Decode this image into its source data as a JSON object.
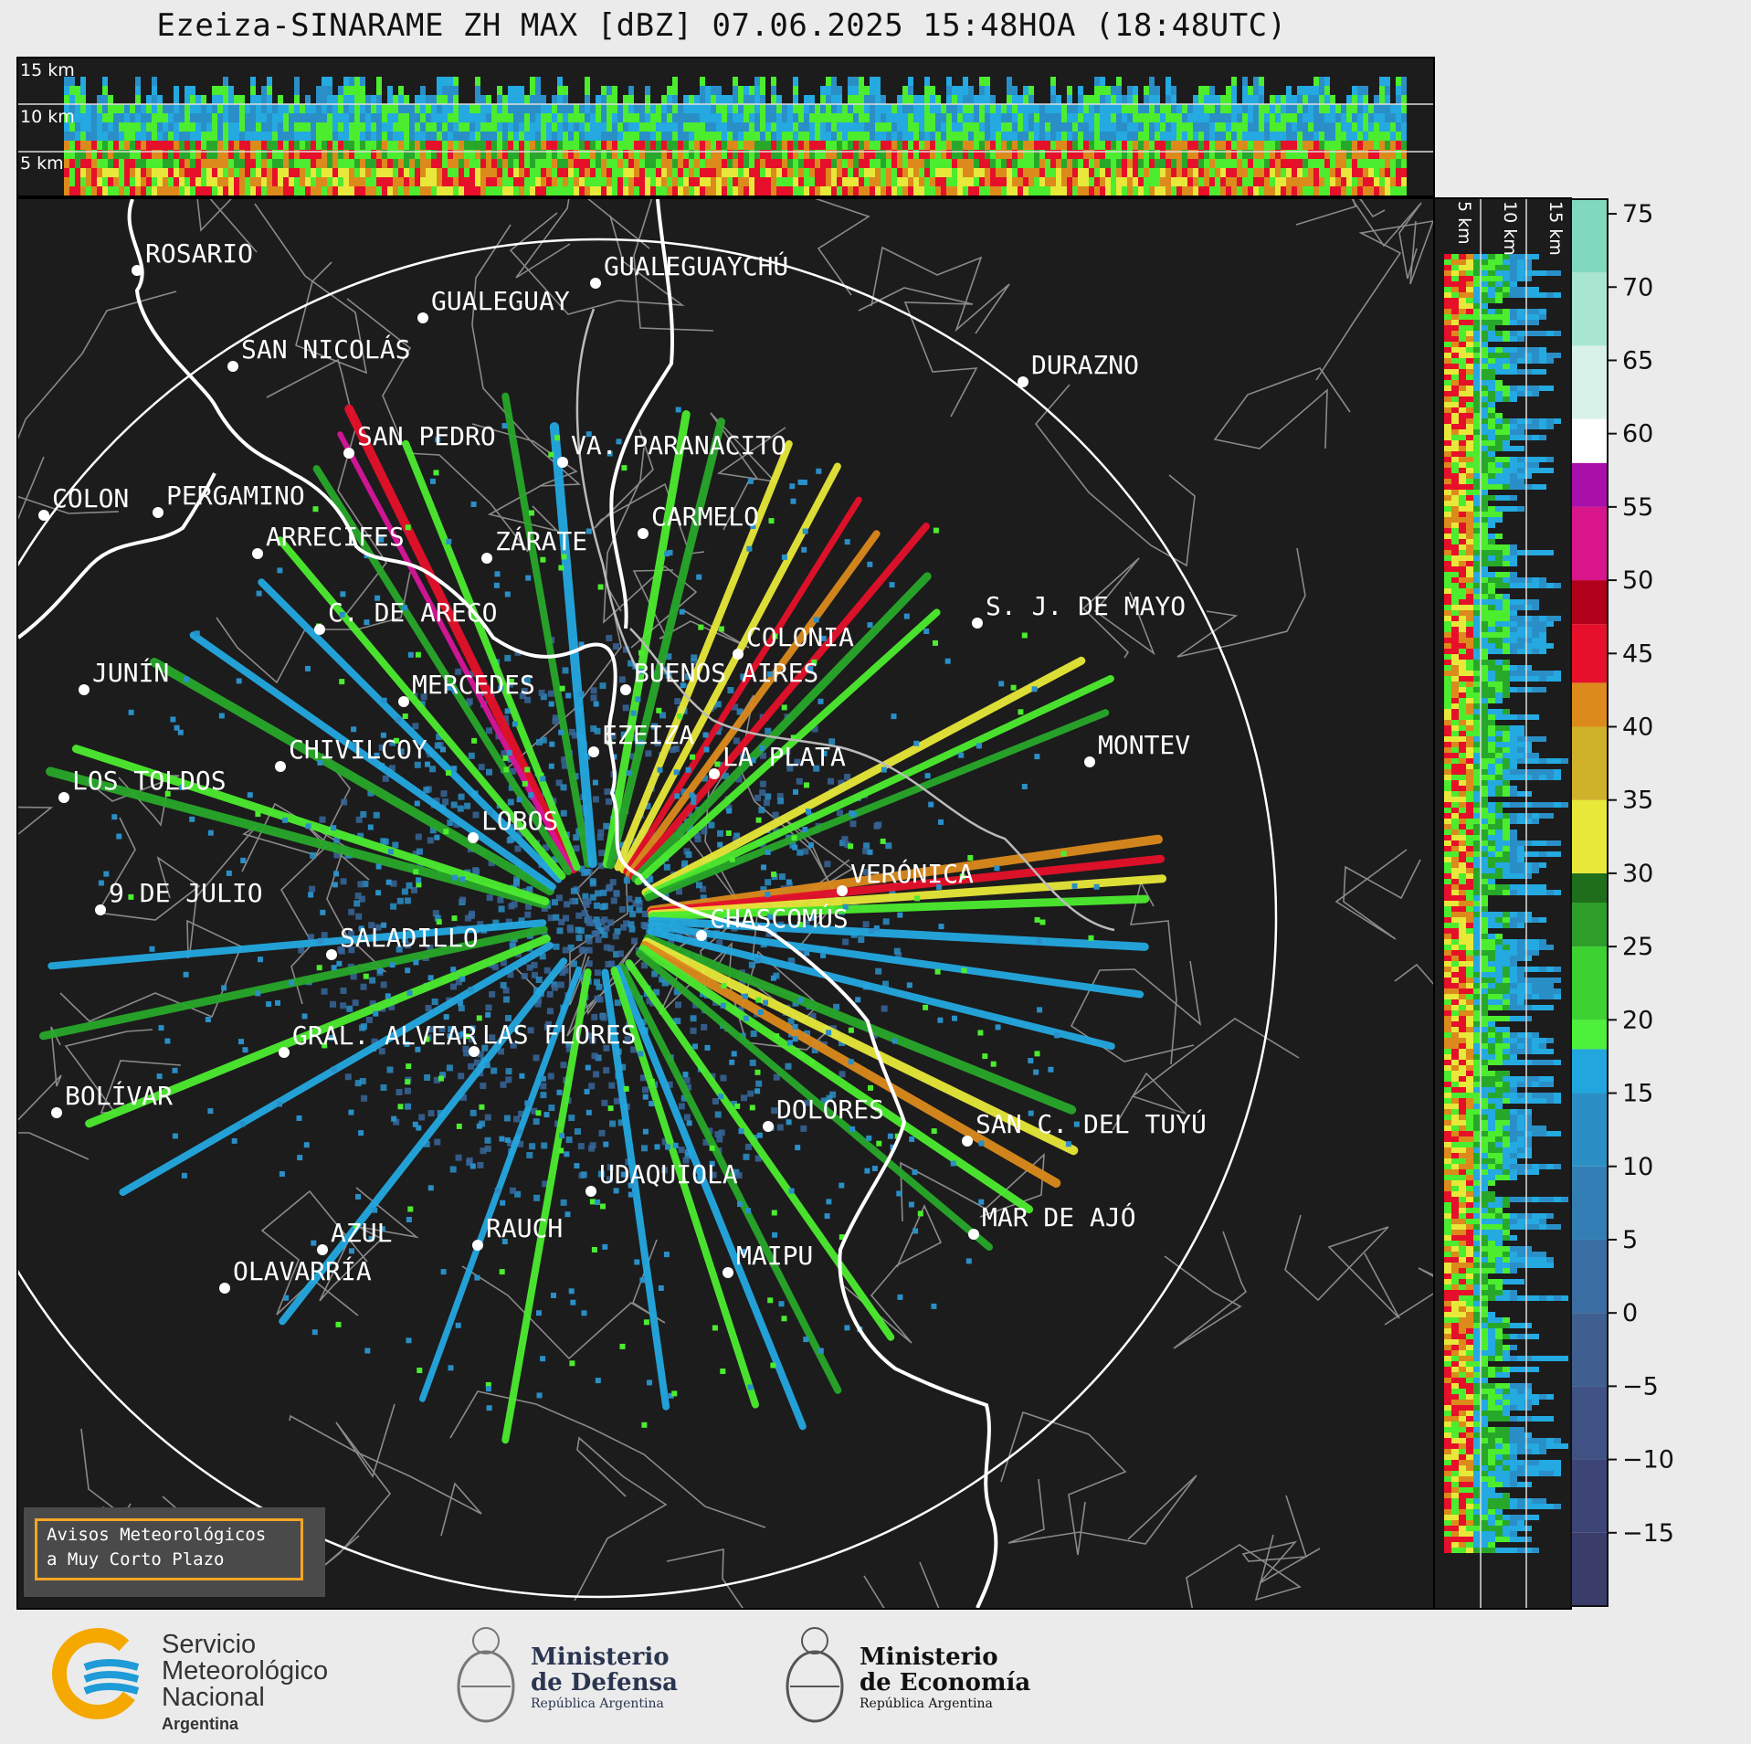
{
  "title": "Ezeiza-SINARAME ZH MAX [dBZ] 07.06.2025 15:48HOA (18:48UTC)",
  "height_labels": [
    "15 km",
    "10 km",
    "5 km"
  ],
  "cities": [
    {
      "name": "ROSARIO"
    },
    {
      "name": "GUALEGUAYCHÚ"
    },
    {
      "name": "GUALEGUAY"
    },
    {
      "name": "SAN NICOLÁS"
    },
    {
      "name": "DURAZNO"
    },
    {
      "name": "SAN PEDRO"
    },
    {
      "name": "VA. PARANACITO"
    },
    {
      "name": "COLON"
    },
    {
      "name": "PERGAMINO"
    },
    {
      "name": "CARMELO"
    },
    {
      "name": "ARRECIFES"
    },
    {
      "name": "ZÁRATE"
    },
    {
      "name": "C. DE ARECO"
    },
    {
      "name": "S. J. DE MAYO"
    },
    {
      "name": "COLONIA"
    },
    {
      "name": "JUNÍN"
    },
    {
      "name": "BUENOS AIRES"
    },
    {
      "name": "MERCEDES"
    },
    {
      "name": "EZEIZA"
    },
    {
      "name": "MONTEV"
    },
    {
      "name": "CHIVILCOY"
    },
    {
      "name": "LA PLATA"
    },
    {
      "name": "LOS TOLDOS"
    },
    {
      "name": "LOBOS"
    },
    {
      "name": "VERÓNICA"
    },
    {
      "name": "9 DE JULIO"
    },
    {
      "name": "CHASCOMÚS"
    },
    {
      "name": "SALADILLO"
    },
    {
      "name": "GRAL. ALVEAR"
    },
    {
      "name": "LAS FLORES"
    },
    {
      "name": "BOLÍVAR"
    },
    {
      "name": "DOLORES"
    },
    {
      "name": "SAN C. DEL TUYÚ"
    },
    {
      "name": "UDAQUIOLA"
    },
    {
      "name": "MAR DE AJÓ"
    },
    {
      "name": "AZUL"
    },
    {
      "name": "RAUCH"
    },
    {
      "name": "OLAVARRÍA"
    },
    {
      "name": "MAIPU"
    }
  ],
  "colorbar": {
    "ticks": [
      "75",
      "70",
      "65",
      "60",
      "55",
      "50",
      "45",
      "40",
      "35",
      "30",
      "25",
      "20",
      "15",
      "10",
      "5",
      "0",
      "−5",
      "−10",
      "−15"
    ],
    "range": [
      -20,
      76
    ],
    "colors": {
      "min": "#3b3d6b",
      "blue_dark": "#37669a",
      "blue": "#2a8fc7",
      "cyan": "#24a9e1",
      "green_light": "#4cec2f",
      "green": "#28a82a",
      "green_dark": "#186a1e",
      "yellow": "#e8e83a",
      "orange": "#dc8a1c",
      "red": "#e6102a",
      "darkred": "#a80015",
      "magenta": "#d8159a",
      "purple": "#9a10b0",
      "white": "#ffffff",
      "teal": "#7fd8c0"
    }
  },
  "alert": {
    "text": "Avisos Meteorológicos\na Muy Corto Plazo"
  },
  "logos": {
    "smn": {
      "line1": "Servicio",
      "line2": "Meteorológico",
      "line3": "Nacional",
      "line4": "Argentina"
    },
    "defensa": {
      "line1": "Ministerio",
      "line2": "de Defensa",
      "line3": "República Argentina"
    },
    "economia": {
      "line1": "Ministerio",
      "line2": "de Economía",
      "line3": "República Argentina"
    }
  }
}
